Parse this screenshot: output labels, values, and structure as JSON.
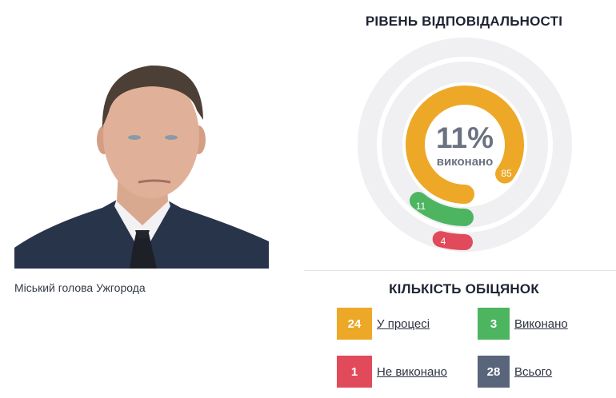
{
  "profile": {
    "photo_alt": "portrait",
    "caption": "Міський голова Ужгорода"
  },
  "responsibility": {
    "title": "РІВЕНЬ ВІДПОВІДАЛЬНОСТІ",
    "center_percent": "11%",
    "center_label": "виконано",
    "rings": [
      {
        "name": "in-progress",
        "value_label": "85",
        "percent": 85,
        "color": "#EDA827"
      },
      {
        "name": "done",
        "value_label": "11",
        "percent": 11,
        "color": "#4DB560"
      },
      {
        "name": "not-done",
        "value_label": "4",
        "percent": 4,
        "color": "#E04A5A"
      }
    ],
    "track_color": "#F0F0F2"
  },
  "promises": {
    "title": "КІЛЬКІСТЬ ОБІЦЯНОК",
    "items": [
      {
        "count": "24",
        "label": "У процесі",
        "color": "#EDA827"
      },
      {
        "count": "3",
        "label": "Виконано",
        "color": "#4DB560"
      },
      {
        "count": "1",
        "label": "Не виконано",
        "color": "#E04A5A"
      },
      {
        "count": "28",
        "label": "Всього",
        "color": "#58657A"
      }
    ]
  },
  "chart_data": {
    "type": "radial-bar",
    "title": "РІВЕНЬ ВІДПОВІДАЛЬНОСТІ",
    "center_text": "11% виконано",
    "categories": [
      "У процесі",
      "Виконано",
      "Не виконано"
    ],
    "values": [
      85,
      11,
      4
    ],
    "unit": "%",
    "colors": [
      "#EDA827",
      "#4DB560",
      "#E04A5A"
    ],
    "counts": {
      "У процесі": 24,
      "Виконано": 3,
      "Не виконано": 1,
      "Всього": 28
    }
  }
}
